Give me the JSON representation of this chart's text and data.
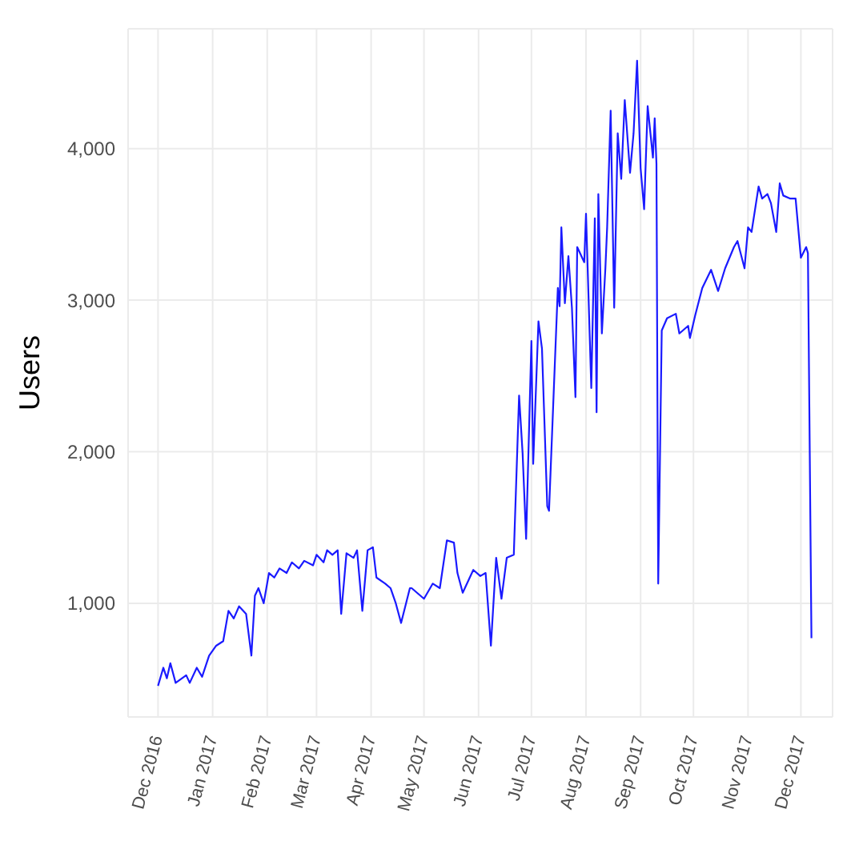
{
  "chart_data": {
    "type": "line",
    "ylabel": "Users",
    "grid": true,
    "marker": "none",
    "line_style": "solid",
    "xlim": [
      "2016-11-14",
      "2017-12-19"
    ],
    "xticks": [
      {
        "value": "2016-12-01",
        "label": "Dec 2016"
      },
      {
        "value": "2017-01-01",
        "label": "Jan 2017"
      },
      {
        "value": "2017-02-01",
        "label": "Feb 2017"
      },
      {
        "value": "2017-03-01",
        "label": "Mar 2017"
      },
      {
        "value": "2017-04-01",
        "label": "Apr 2017"
      },
      {
        "value": "2017-05-01",
        "label": "May 2017"
      },
      {
        "value": "2017-06-01",
        "label": "Jun 2017"
      },
      {
        "value": "2017-07-01",
        "label": "Jul 2017"
      },
      {
        "value": "2017-08-01",
        "label": "Aug 2017"
      },
      {
        "value": "2017-09-01",
        "label": "Sep 2017"
      },
      {
        "value": "2017-10-01",
        "label": "Oct 2017"
      },
      {
        "value": "2017-11-01",
        "label": "Nov 2017"
      },
      {
        "value": "2017-12-01",
        "label": "Dec 2017"
      }
    ],
    "ylim": [
      250,
      4790
    ],
    "yticks": [
      {
        "value": 1000,
        "label": "1,000"
      },
      {
        "value": 2000,
        "label": "2,000"
      },
      {
        "value": 3000,
        "label": "3,000"
      },
      {
        "value": 4000,
        "label": "4,000"
      }
    ],
    "x": [
      "2016-12-01",
      "2016-12-04",
      "2016-12-06",
      "2016-12-08",
      "2016-12-11",
      "2016-12-17",
      "2016-12-19",
      "2016-12-23",
      "2016-12-26",
      "2016-12-30",
      "2017-01-03",
      "2017-01-07",
      "2017-01-10",
      "2017-01-13",
      "2017-01-16",
      "2017-01-20",
      "2017-01-23",
      "2017-01-25",
      "2017-01-27",
      "2017-01-30",
      "2017-02-02",
      "2017-02-05",
      "2017-02-08",
      "2017-02-12",
      "2017-02-15",
      "2017-02-19",
      "2017-02-22",
      "2017-02-27",
      "2017-03-01",
      "2017-03-05",
      "2017-03-07",
      "2017-03-10",
      "2017-03-13",
      "2017-03-15",
      "2017-03-18",
      "2017-03-22",
      "2017-03-24",
      "2017-03-27",
      "2017-03-30",
      "2017-04-02",
      "2017-04-04",
      "2017-04-09",
      "2017-04-12",
      "2017-04-15",
      "2017-04-18",
      "2017-04-23",
      "2017-04-24",
      "2017-05-01",
      "2017-05-06",
      "2017-05-10",
      "2017-05-14",
      "2017-05-18",
      "2017-05-20",
      "2017-05-23",
      "2017-05-29",
      "2017-06-02",
      "2017-06-05",
      "2017-06-08",
      "2017-06-11",
      "2017-06-14",
      "2017-06-17",
      "2017-06-21",
      "2017-06-24",
      "2017-06-26",
      "2017-06-28",
      "2017-07-01",
      "2017-07-02",
      "2017-07-05",
      "2017-07-07",
      "2017-07-10",
      "2017-07-11",
      "2017-07-16",
      "2017-07-17",
      "2017-07-18",
      "2017-07-20",
      "2017-07-22",
      "2017-07-24",
      "2017-07-26",
      "2017-07-27",
      "2017-07-31",
      "2017-08-01",
      "2017-08-04",
      "2017-08-06",
      "2017-08-07",
      "2017-08-08",
      "2017-08-10",
      "2017-08-12",
      "2017-08-13",
      "2017-08-15",
      "2017-08-17",
      "2017-08-19",
      "2017-08-21",
      "2017-08-23",
      "2017-08-26",
      "2017-08-28",
      "2017-08-30",
      "2017-09-01",
      "2017-09-03",
      "2017-09-05",
      "2017-09-08",
      "2017-09-09",
      "2017-09-10",
      "2017-09-11",
      "2017-09-13",
      "2017-09-16",
      "2017-09-21",
      "2017-09-23",
      "2017-09-28",
      "2017-09-29",
      "2017-10-02",
      "2017-10-06",
      "2017-10-11",
      "2017-10-15",
      "2017-10-19",
      "2017-10-24",
      "2017-10-26",
      "2017-10-30",
      "2017-11-01",
      "2017-11-03",
      "2017-11-07",
      "2017-11-09",
      "2017-11-12",
      "2017-11-14",
      "2017-11-17",
      "2017-11-19",
      "2017-11-21",
      "2017-11-25",
      "2017-11-28",
      "2017-12-01",
      "2017-12-04",
      "2017-12-05",
      "2017-12-07"
    ],
    "series": [
      {
        "color": "#1a1aff",
        "values": [
          455,
          575,
          505,
          605,
          475,
          525,
          475,
          575,
          515,
          655,
          720,
          750,
          950,
          900,
          980,
          930,
          655,
          1050,
          1100,
          1000,
          1200,
          1170,
          1230,
          1200,
          1270,
          1230,
          1280,
          1250,
          1320,
          1270,
          1350,
          1320,
          1350,
          930,
          1330,
          1300,
          1350,
          950,
          1350,
          1370,
          1170,
          1130,
          1100,
          1000,
          870,
          1100,
          1100,
          1030,
          1130,
          1100,
          1415,
          1400,
          1200,
          1070,
          1220,
          1180,
          1200,
          720,
          1300,
          1030,
          1300,
          1320,
          2370,
          1990,
          1425,
          2730,
          1920,
          2860,
          2680,
          1640,
          1610,
          3080,
          2960,
          3480,
          2980,
          3290,
          2950,
          2360,
          3350,
          3250,
          3570,
          2420,
          3540,
          2260,
          3700,
          2780,
          3210,
          3480,
          4250,
          2950,
          4100,
          3800,
          4320,
          3840,
          4100,
          4580,
          3870,
          3600,
          4280,
          3940,
          4200,
          3900,
          1130,
          2800,
          2880,
          2910,
          2780,
          2830,
          2750,
          2900,
          3080,
          3200,
          3060,
          3210,
          3350,
          3390,
          3210,
          3480,
          3450,
          3750,
          3670,
          3700,
          3640,
          3450,
          3770,
          3690,
          3670,
          3670,
          3280,
          3350,
          3310,
          770
        ]
      }
    ]
  }
}
